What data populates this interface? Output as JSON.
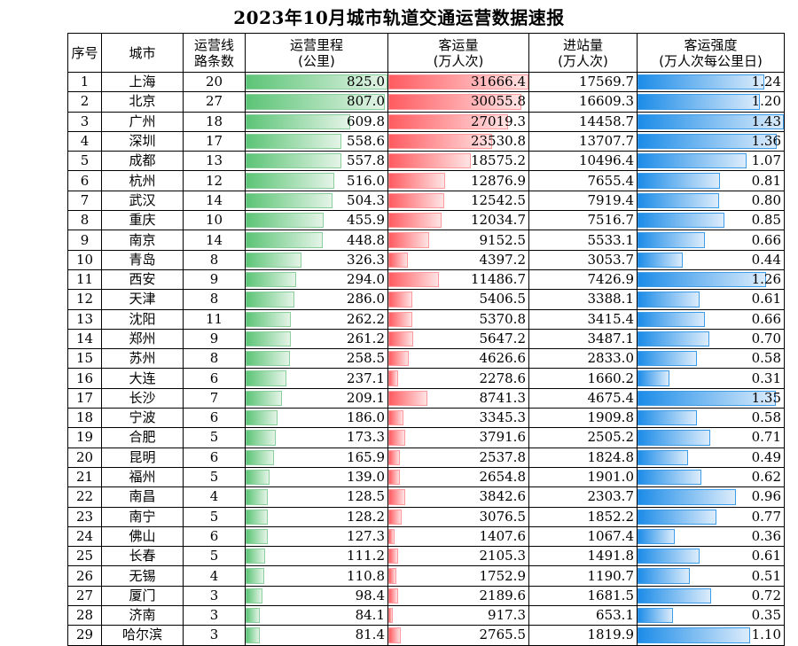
{
  "title": "2023年10月城市轨道交通运营数据速报",
  "headers": {
    "index": "序号",
    "city": "城市",
    "lines": [
      "运营线",
      "路条数"
    ],
    "mileage": [
      "运营里程",
      "(公里)"
    ],
    "ridership": [
      "客运量",
      "(万人次)"
    ],
    "entries": [
      "进站量",
      "(万人次)"
    ],
    "intensity": [
      "客运强度",
      "(万人次每公里日)"
    ]
  },
  "colors": {
    "mileage": "#5cc476",
    "ridership": "#ff5b60",
    "intensity": "#1c8ce8"
  },
  "scales": {
    "mileage_max": 825.0,
    "ridership_max": 31666.4,
    "intensity_max": 1.43
  },
  "rows": [
    {
      "no": "1",
      "city": "上海",
      "lines": "20",
      "mileage": "825.0",
      "ridership": "31666.4",
      "entries": "17569.7",
      "intensity": "1.24"
    },
    {
      "no": "2",
      "city": "北京",
      "lines": "27",
      "mileage": "807.0",
      "ridership": "30055.8",
      "entries": "16609.3",
      "intensity": "1.20"
    },
    {
      "no": "3",
      "city": "广州",
      "lines": "18",
      "mileage": "609.8",
      "ridership": "27019.3",
      "entries": "14458.7",
      "intensity": "1.43"
    },
    {
      "no": "4",
      "city": "深圳",
      "lines": "17",
      "mileage": "558.6",
      "ridership": "23530.8",
      "entries": "13707.7",
      "intensity": "1.36"
    },
    {
      "no": "5",
      "city": "成都",
      "lines": "13",
      "mileage": "557.8",
      "ridership": "18575.2",
      "entries": "10496.4",
      "intensity": "1.07"
    },
    {
      "no": "6",
      "city": "杭州",
      "lines": "12",
      "mileage": "516.0",
      "ridership": "12876.9",
      "entries": "7655.4",
      "intensity": "0.81"
    },
    {
      "no": "7",
      "city": "武汉",
      "lines": "14",
      "mileage": "504.3",
      "ridership": "12542.5",
      "entries": "7919.4",
      "intensity": "0.80"
    },
    {
      "no": "8",
      "city": "重庆",
      "lines": "10",
      "mileage": "455.9",
      "ridership": "12034.7",
      "entries": "7516.7",
      "intensity": "0.85"
    },
    {
      "no": "9",
      "city": "南京",
      "lines": "14",
      "mileage": "448.8",
      "ridership": "9152.5",
      "entries": "5533.1",
      "intensity": "0.66"
    },
    {
      "no": "10",
      "city": "青岛",
      "lines": "8",
      "mileage": "326.3",
      "ridership": "4397.2",
      "entries": "3053.7",
      "intensity": "0.44"
    },
    {
      "no": "11",
      "city": "西安",
      "lines": "9",
      "mileage": "294.0",
      "ridership": "11486.7",
      "entries": "7426.9",
      "intensity": "1.26"
    },
    {
      "no": "12",
      "city": "天津",
      "lines": "8",
      "mileage": "286.0",
      "ridership": "5406.5",
      "entries": "3388.1",
      "intensity": "0.61"
    },
    {
      "no": "13",
      "city": "沈阳",
      "lines": "11",
      "mileage": "262.2",
      "ridership": "5370.8",
      "entries": "3415.4",
      "intensity": "0.66"
    },
    {
      "no": "14",
      "city": "郑州",
      "lines": "9",
      "mileage": "261.2",
      "ridership": "5647.2",
      "entries": "3487.1",
      "intensity": "0.70"
    },
    {
      "no": "15",
      "city": "苏州",
      "lines": "8",
      "mileage": "258.5",
      "ridership": "4626.6",
      "entries": "2833.0",
      "intensity": "0.58"
    },
    {
      "no": "16",
      "city": "大连",
      "lines": "6",
      "mileage": "237.1",
      "ridership": "2278.6",
      "entries": "1660.2",
      "intensity": "0.31"
    },
    {
      "no": "17",
      "city": "长沙",
      "lines": "7",
      "mileage": "209.1",
      "ridership": "8741.3",
      "entries": "4675.4",
      "intensity": "1.35"
    },
    {
      "no": "18",
      "city": "宁波",
      "lines": "6",
      "mileage": "186.0",
      "ridership": "3345.3",
      "entries": "1909.8",
      "intensity": "0.58"
    },
    {
      "no": "19",
      "city": "合肥",
      "lines": "5",
      "mileage": "173.3",
      "ridership": "3791.6",
      "entries": "2505.2",
      "intensity": "0.71"
    },
    {
      "no": "20",
      "city": "昆明",
      "lines": "6",
      "mileage": "165.9",
      "ridership": "2537.8",
      "entries": "1824.8",
      "intensity": "0.49"
    },
    {
      "no": "21",
      "city": "福州",
      "lines": "5",
      "mileage": "139.0",
      "ridership": "2654.8",
      "entries": "1901.0",
      "intensity": "0.62"
    },
    {
      "no": "22",
      "city": "南昌",
      "lines": "4",
      "mileage": "128.5",
      "ridership": "3842.6",
      "entries": "2303.7",
      "intensity": "0.96"
    },
    {
      "no": "23",
      "city": "南宁",
      "lines": "5",
      "mileage": "128.2",
      "ridership": "3076.5",
      "entries": "1852.2",
      "intensity": "0.77"
    },
    {
      "no": "24",
      "city": "佛山",
      "lines": "6",
      "mileage": "127.3",
      "ridership": "1407.6",
      "entries": "1067.4",
      "intensity": "0.36"
    },
    {
      "no": "25",
      "city": "长春",
      "lines": "5",
      "mileage": "111.2",
      "ridership": "2105.3",
      "entries": "1491.8",
      "intensity": "0.61"
    },
    {
      "no": "26",
      "city": "无锡",
      "lines": "4",
      "mileage": "110.8",
      "ridership": "1752.9",
      "entries": "1190.7",
      "intensity": "0.51"
    },
    {
      "no": "27",
      "city": "厦门",
      "lines": "3",
      "mileage": "98.4",
      "ridership": "2189.6",
      "entries": "1681.5",
      "intensity": "0.72"
    },
    {
      "no": "28",
      "city": "济南",
      "lines": "3",
      "mileage": "84.1",
      "ridership": "917.3",
      "entries": "653.1",
      "intensity": "0.35"
    },
    {
      "no": "29",
      "city": "哈尔滨",
      "lines": "3",
      "mileage": "81.4",
      "ridership": "2765.5",
      "entries": "1819.9",
      "intensity": "1.10"
    }
  ]
}
